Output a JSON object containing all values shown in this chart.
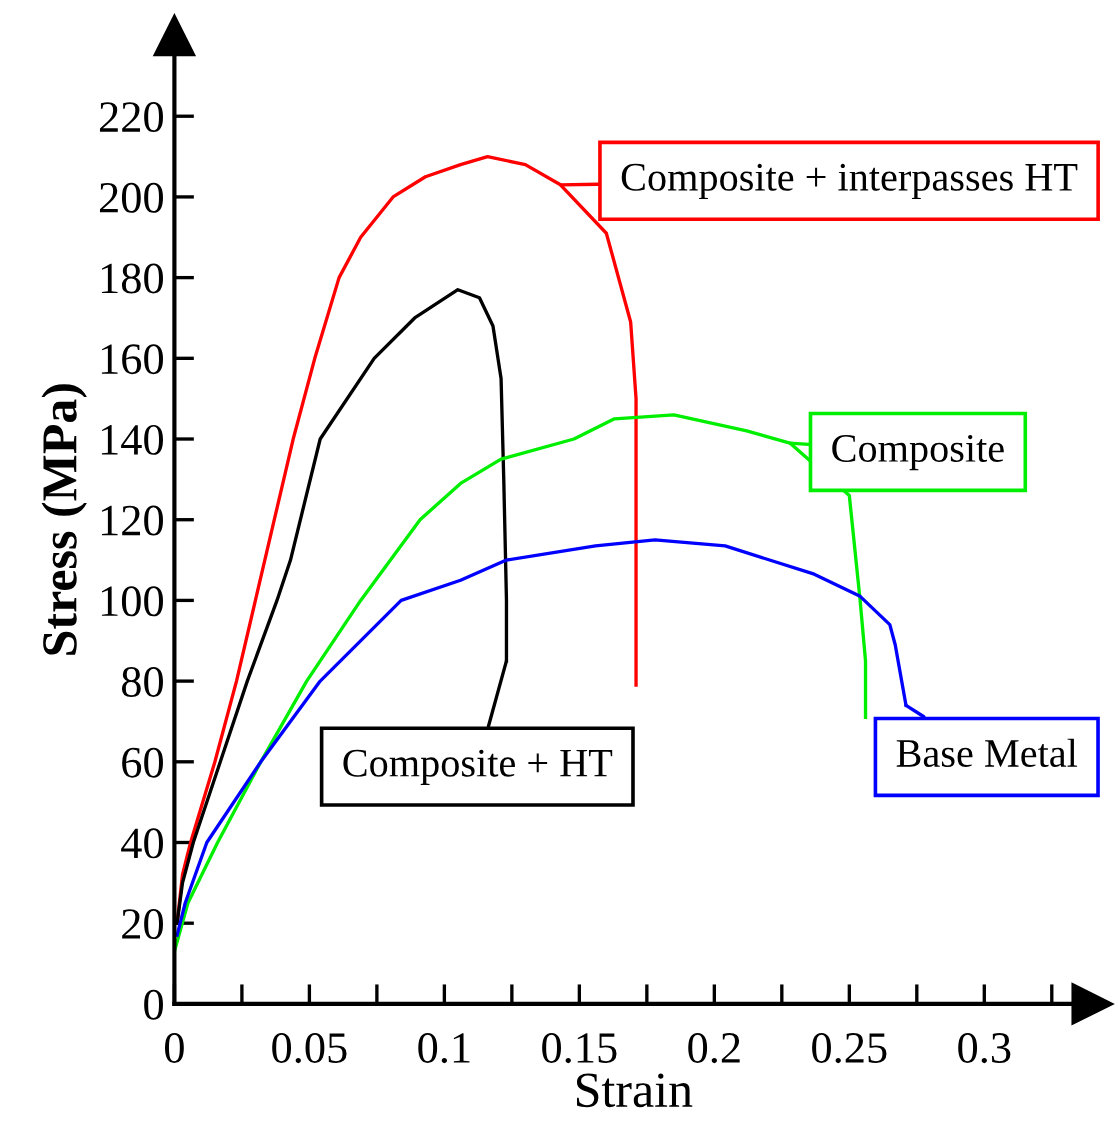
{
  "chart_data": {
    "type": "line",
    "xlabel": "Strain",
    "ylabel": "Stress (MPa)",
    "xlim": [
      0,
      0.34
    ],
    "ylim": [
      0,
      240
    ],
    "xticks": [
      0,
      {
        "value": 0.025,
        "label": null
      },
      0.05,
      {
        "value": 0.075,
        "label": null
      },
      0.1,
      {
        "value": 0.125,
        "label": null
      },
      0.15,
      {
        "value": 0.175,
        "label": null
      },
      0.2,
      {
        "value": 0.225,
        "label": null
      },
      0.25,
      {
        "value": 0.275,
        "label": null
      },
      0.3,
      {
        "value": 0.325,
        "label": null
      }
    ],
    "yticks": [
      0,
      20,
      40,
      60,
      80,
      100,
      120,
      140,
      160,
      180,
      200,
      220
    ],
    "grid": false,
    "legend": false,
    "marker": "none",
    "line_style": "solid",
    "series": [
      {
        "color": "#ff0000",
        "x": [
          0.001,
          0.003,
          0.006,
          0.015,
          0.023,
          0.03,
          0.037,
          0.044,
          0.052,
          0.061,
          0.069,
          0.081,
          0.093,
          0.106,
          0.116,
          0.13,
          0.143,
          0.16,
          0.169,
          0.171,
          0.171
        ],
        "values": [
          20,
          32,
          40,
          60,
          80,
          100,
          120,
          140,
          160,
          180,
          190,
          200,
          205,
          208,
          210,
          208,
          203,
          191,
          169,
          150,
          79
        ]
      },
      {
        "color": "#000000",
        "x": [
          0.001,
          0.003,
          0.007,
          0.017,
          0.027,
          0.038,
          0.043,
          0.054,
          0.074,
          0.089,
          0.105,
          0.113,
          0.118,
          0.121,
          0.122,
          0.123,
          0.123
        ],
        "values": [
          20,
          30,
          40,
          60,
          80,
          100,
          110,
          140,
          160,
          170,
          177,
          175,
          168,
          155,
          130,
          100,
          85
        ]
      },
      {
        "color": "#00ee00",
        "x": [
          0.0,
          0.005,
          0.016,
          0.032,
          0.049,
          0.069,
          0.091,
          0.106,
          0.121,
          0.148,
          0.163,
          0.185,
          0.212,
          0.228,
          0.25,
          0.254,
          0.256,
          0.256
        ],
        "values": [
          13,
          25,
          40,
          60,
          80,
          100,
          120,
          129,
          135,
          140,
          145,
          146,
          142,
          139,
          126,
          100,
          85,
          71
        ]
      },
      {
        "color": "#0000ff",
        "x": [
          0.001,
          0.004,
          0.012,
          0.032,
          0.054,
          0.084,
          0.106,
          0.123,
          0.156,
          0.178,
          0.204,
          0.237,
          0.254,
          0.265,
          0.267,
          0.271
        ],
        "values": [
          17,
          25,
          40,
          60,
          80,
          100,
          105,
          110,
          113.5,
          115,
          113.5,
          106.5,
          101,
          94,
          89,
          74
        ]
      }
    ],
    "annotations": [
      {
        "text": "Composite + interpasses HT",
        "x": 0.143,
        "y": 203
      },
      {
        "text": "Composite + HT",
        "x": 0.123,
        "y": 85
      },
      {
        "text": "Composite",
        "x": 0.228,
        "y": 139
      },
      {
        "text": "Base Metal",
        "x": 0.271,
        "y": 74
      }
    ]
  }
}
